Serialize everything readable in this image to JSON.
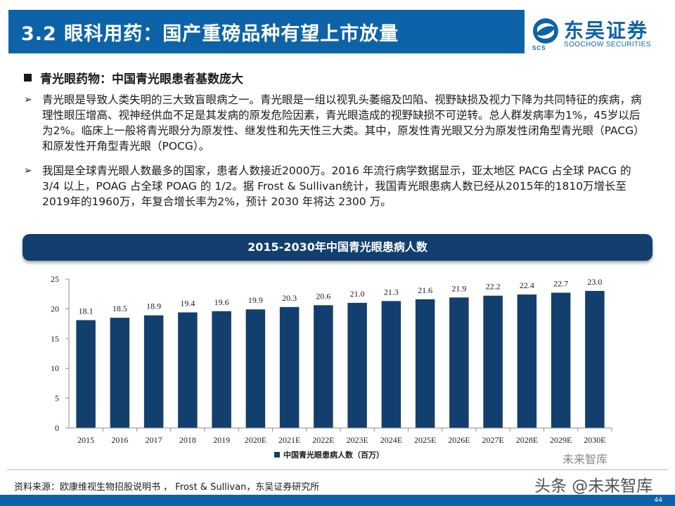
{
  "header": {
    "title": "3.2 眼科用药：国产重磅品种有望上市放量"
  },
  "logo": {
    "name_cn": "东吴证券",
    "name_en": "SOOCHOW SECURITIES",
    "abbr": "SCS"
  },
  "section": {
    "title": "青光眼药物：中国青光眼患者基数庞大"
  },
  "paragraphs": [
    {
      "arrow": "➢",
      "text": "青光眼是导致人类失明的三大致盲眼病之一。青光眼是一组以视乳头萎缩及凹陷、视野缺损及视力下降为共同特征的疾病，病理性眼压增高、视神经供血不足是其发病的原发危险因素，青光眼造成的视野缺损不可逆转。总人群发病率为1%，45岁以后为2%。临床上一般将青光眼分为原发性、继发性和先天性三大类。其中，原发性青光眼又分为原发性闭角型青光眼（PACG）和原发性开角型青光眼（POCG）。"
    },
    {
      "arrow": "➢",
      "text": "我国是全球青光眼人数最多的国家，患者人数接近2000万。2016 年流行病学数据显示，亚太地区 PACG 占全球 PACG 的 3/4 以上，POAG 占全球 POAG 的 1/2。据 Frost & Sullivan统计，我国青光眼患病人数已经从2015年的1810万增长至2019年的1960万，年复合增长率为2%，预计 2030 年将达 2300 万。"
    }
  ],
  "chart_data": {
    "type": "bar",
    "title": "2015-2030年中国青光眼患病人数",
    "categories": [
      "2015",
      "2016",
      "2017",
      "2018",
      "2019",
      "2020E",
      "2021E",
      "2022E",
      "2023E",
      "2024E",
      "2025E",
      "2026E",
      "2027E",
      "2028E",
      "2029E",
      "2030E"
    ],
    "series": [
      {
        "name": "中国青光眼患病人数（百万）",
        "values": [
          18.1,
          18.5,
          18.9,
          19.4,
          19.6,
          19.9,
          20.3,
          20.6,
          21.0,
          21.3,
          21.6,
          21.9,
          22.2,
          22.4,
          22.7,
          23.0
        ]
      }
    ],
    "value_labels": [
      "18.1",
      "18.5",
      "18.9",
      "19.4",
      "19.6",
      "19.9",
      "20.3",
      "20.6",
      "21.0",
      "21.3",
      "21.6",
      "21.9",
      "22.2",
      "22.4",
      "22.7",
      "23.0"
    ],
    "ylim": [
      0,
      25
    ],
    "yticks": [
      "0",
      "5",
      "10",
      "15",
      "20",
      "25"
    ],
    "ytick_values": [
      0,
      5,
      10,
      15,
      20,
      25
    ],
    "xlabel": "",
    "ylabel": "",
    "grid": false,
    "legend_position": "bottom",
    "bar_color": "#123f6e"
  },
  "footer": {
    "source": "资料来源：欧康维视生物招股说明书 ， Frost & Sullivan，东吴证券研究所",
    "watermark": "头条 @未来智库",
    "watermark_small": "未来智库",
    "page_number": "44"
  },
  "colors": {
    "brand": "#0e63a8",
    "chart_title_bar": "#123f6e",
    "bar": "#123f6e"
  }
}
